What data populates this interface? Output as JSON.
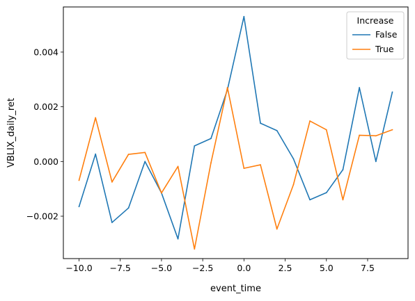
{
  "chart_data": {
    "type": "line",
    "xlabel": "event_time",
    "ylabel": "VBLIX_daily_ret",
    "xlim": [
      -10.95,
      9.95
    ],
    "ylim": [
      -0.00355,
      0.00565
    ],
    "xticks": [
      -10.0,
      -7.5,
      -5.0,
      -2.5,
      0.0,
      2.5,
      5.0,
      7.5
    ],
    "xtick_labels": [
      "−10.0",
      "−7.5",
      "−5.0",
      "−2.5",
      "0.0",
      "2.5",
      "5.0",
      "7.5"
    ],
    "yticks": [
      -0.002,
      0.0,
      0.002,
      0.004
    ],
    "ytick_labels": [
      "−0.002",
      "0.000",
      "0.002",
      "0.004"
    ],
    "grid": false,
    "legend": {
      "title": "Increase",
      "position": "top-right"
    },
    "x": [
      -10,
      -9,
      -8,
      -7,
      -6,
      -5,
      -4,
      -3,
      -2,
      -1,
      0,
      1,
      2,
      3,
      4,
      5,
      6,
      7,
      8,
      9
    ],
    "series": [
      {
        "name": "False",
        "color": "#1f77b4",
        "values": [
          -0.00165,
          0.00027,
          -0.00223,
          -0.0017,
          0.0,
          -0.00115,
          -0.00283,
          0.00057,
          0.00084,
          0.00263,
          0.0053,
          0.0014,
          0.00113,
          0.0001,
          -0.0014,
          -0.00114,
          -0.0003,
          0.0027,
          0.0,
          0.00254
        ]
      },
      {
        "name": "True",
        "color": "#ff7f0e",
        "values": [
          -0.00069,
          0.0016,
          -0.00075,
          0.00026,
          0.00033,
          -0.00115,
          -0.00018,
          -0.0032,
          -5e-05,
          0.0027,
          -0.00025,
          -0.00012,
          -0.00247,
          -0.00085,
          0.00148,
          0.00116,
          -0.0014,
          0.00096,
          0.00094,
          0.00116
        ]
      }
    ]
  }
}
